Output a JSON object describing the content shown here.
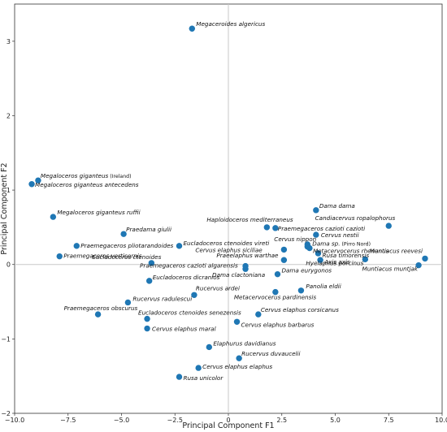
{
  "chart_data": {
    "type": "scatter",
    "title": "",
    "xlabel": "Principal Component F1",
    "ylabel": "Principal Component F2",
    "xlim": [
      -10.0,
      10.0
    ],
    "ylim": [
      -2.0,
      3.5
    ],
    "xticks": [
      -10.0,
      -7.5,
      -5.0,
      -2.5,
      0,
      2.5,
      5.0,
      7.5,
      10.0
    ],
    "xtick_labels": [
      "−10.0",
      "−7.5",
      "−5.0",
      "−2.5",
      "0",
      "2.5",
      "5.0",
      "7.5",
      "10.0"
    ],
    "yticks": [
      -2,
      -1,
      0,
      1,
      2,
      3
    ],
    "ytick_labels": [
      "−2",
      "−1",
      "0",
      "1",
      "2",
      "3"
    ],
    "zero_lines": true,
    "grid": false,
    "marker_color": "#1f77b4",
    "points": [
      {
        "label": "Megaceroides algericus",
        "x": -1.7,
        "y": 3.17
      },
      {
        "label": "Megaloceros giganteus",
        "note": "(Ireland)",
        "x": -8.9,
        "y": 1.13
      },
      {
        "label": "Megaloceros giganteus antecedens",
        "x": -9.2,
        "y": 1.08
      },
      {
        "label": "Megaloceros giganteus ruffii",
        "x": -8.2,
        "y": 0.64
      },
      {
        "label": "Praedama giulii",
        "x": -4.9,
        "y": 0.41
      },
      {
        "label": "Praemegaceros pliotarandoides",
        "x": -7.1,
        "y": 0.25
      },
      {
        "label": "Praemegaceros verticornis",
        "x": -7.9,
        "y": 0.11
      },
      {
        "label": "Eucladoceros ctenoides vireti",
        "x": -2.3,
        "y": 0.25
      },
      {
        "label": "Eucladoceros ctenoides",
        "x": -3.6,
        "y": 0.02
      },
      {
        "label": "Eucladoceros dicranios",
        "x": -3.7,
        "y": -0.22
      },
      {
        "label": "Rucervus radulescui",
        "x": -4.7,
        "y": -0.51
      },
      {
        "label": "Rucervus ardei",
        "x": -1.6,
        "y": -0.41
      },
      {
        "label": "Praemegaceros obscurus",
        "x": -6.1,
        "y": -0.67
      },
      {
        "label": "Eucladoceros ctenoides senezensis",
        "x": -3.8,
        "y": -0.73
      },
      {
        "label": "Cervus elaphus maral",
        "x": -3.8,
        "y": -0.86
      },
      {
        "label": "Elaphurus davidianus",
        "x": -0.9,
        "y": -1.11
      },
      {
        "label": "Cervus elaphus elaphus",
        "x": -1.4,
        "y": -1.39
      },
      {
        "label": "Rusa unicolor",
        "x": -2.3,
        "y": -1.51
      },
      {
        "label": "Rucervus duvaucelii",
        "x": 0.5,
        "y": -1.26
      },
      {
        "label": "Cervus elaphus barbarus",
        "x": 0.4,
        "y": -0.77
      },
      {
        "label": "Cervus elaphus corsicanus",
        "x": 1.4,
        "y": -0.67
      },
      {
        "label": "Metacervocerus pardinensis",
        "x": 2.2,
        "y": -0.37
      },
      {
        "label": "Panolia eldii",
        "x": 3.4,
        "y": -0.35
      },
      {
        "label": "Dama eurygonos",
        "x": 2.3,
        "y": -0.13
      },
      {
        "label": "Dama clactoniana",
        "x": 0.8,
        "y": -0.06
      },
      {
        "label": "Praemegaceros cazioti algarensis",
        "x": 0.8,
        "y": -0.02
      },
      {
        "label": "Praeelaphus warthae",
        "x": 2.6,
        "y": 0.06
      },
      {
        "label": "Cervus elaphus siciliae",
        "x": 2.6,
        "y": 0.2
      },
      {
        "label": "Haploidoceros mediterraneus",
        "x": 1.8,
        "y": 0.5
      },
      {
        "label": "Praemegaceros cazioti cazioti",
        "x": 2.2,
        "y": 0.49
      },
      {
        "label": "Cervus nestii",
        "x": 4.1,
        "y": 0.4
      },
      {
        "label": "Dama dama",
        "x": 4.1,
        "y": 0.73
      },
      {
        "label": "Cervus nippon",
        "x": 3.7,
        "y": 0.27
      },
      {
        "label": "Dama sp.",
        "note": "(Pirro Nord)",
        "x": 3.7,
        "y": 0.24
      },
      {
        "label": "Metacervocerus rhenanus",
        "x": 3.8,
        "y": 0.22
      },
      {
        "label": "Rusa timorensis",
        "x": 4.2,
        "y": 0.15
      },
      {
        "label": "Axis axis",
        "x": 4.3,
        "y": 0.06
      },
      {
        "label": "Hyelaphus porcinus",
        "x": 6.4,
        "y": 0.07
      },
      {
        "label": "Candiacervus ropalophorus",
        "x": 7.5,
        "y": 0.52
      },
      {
        "label": "Muntiacus reevesi",
        "x": 9.2,
        "y": 0.08
      },
      {
        "label": "Muntiacus muntjak",
        "x": 8.9,
        "y": -0.01
      }
    ]
  }
}
